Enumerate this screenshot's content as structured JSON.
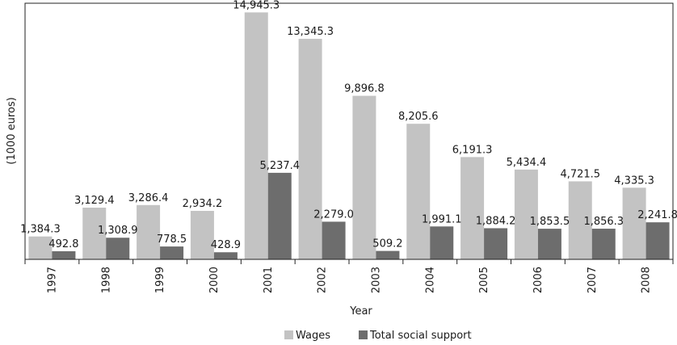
{
  "chart_data": {
    "type": "bar",
    "xlabel": "Year",
    "ylabel": "(1000 euros)",
    "ylim": [
      0,
      15500
    ],
    "grid": false,
    "legend_position": "bottom",
    "categories": [
      "1997",
      "1998",
      "1999",
      "2000",
      "2001",
      "2002",
      "2003",
      "2004",
      "2005",
      "2006",
      "2007",
      "2008"
    ],
    "series": [
      {
        "name": "Wages",
        "color": "#c3c3c3",
        "values": [
          1384.3,
          3129.4,
          3286.4,
          2934.2,
          14945.3,
          13345.3,
          9896.8,
          8205.6,
          6191.3,
          5434.4,
          4721.5,
          4335.3
        ],
        "labels": [
          "1,384.3",
          "3,129.4",
          "3,286.4",
          "2,934.2",
          "14,945.3",
          "13,345.3",
          "9,896.8",
          "8,205.6",
          "6,191.3",
          "5,434.4",
          "4,721.5",
          "4,335.3"
        ]
      },
      {
        "name": "Total social support",
        "color": "#6d6d6d",
        "values": [
          492.8,
          1308.9,
          778.5,
          428.9,
          5237.4,
          2279.0,
          509.2,
          1991.1,
          1884.2,
          1853.5,
          1856.3,
          2241.8
        ],
        "labels": [
          "492.8",
          "1,308.9",
          "778.5",
          "428.9",
          "5,237.4",
          "2,279.0",
          "509.2",
          "1,991.1",
          "1,884.2",
          "1,853.5",
          "1,856.3",
          "2,241.8"
        ]
      }
    ]
  }
}
